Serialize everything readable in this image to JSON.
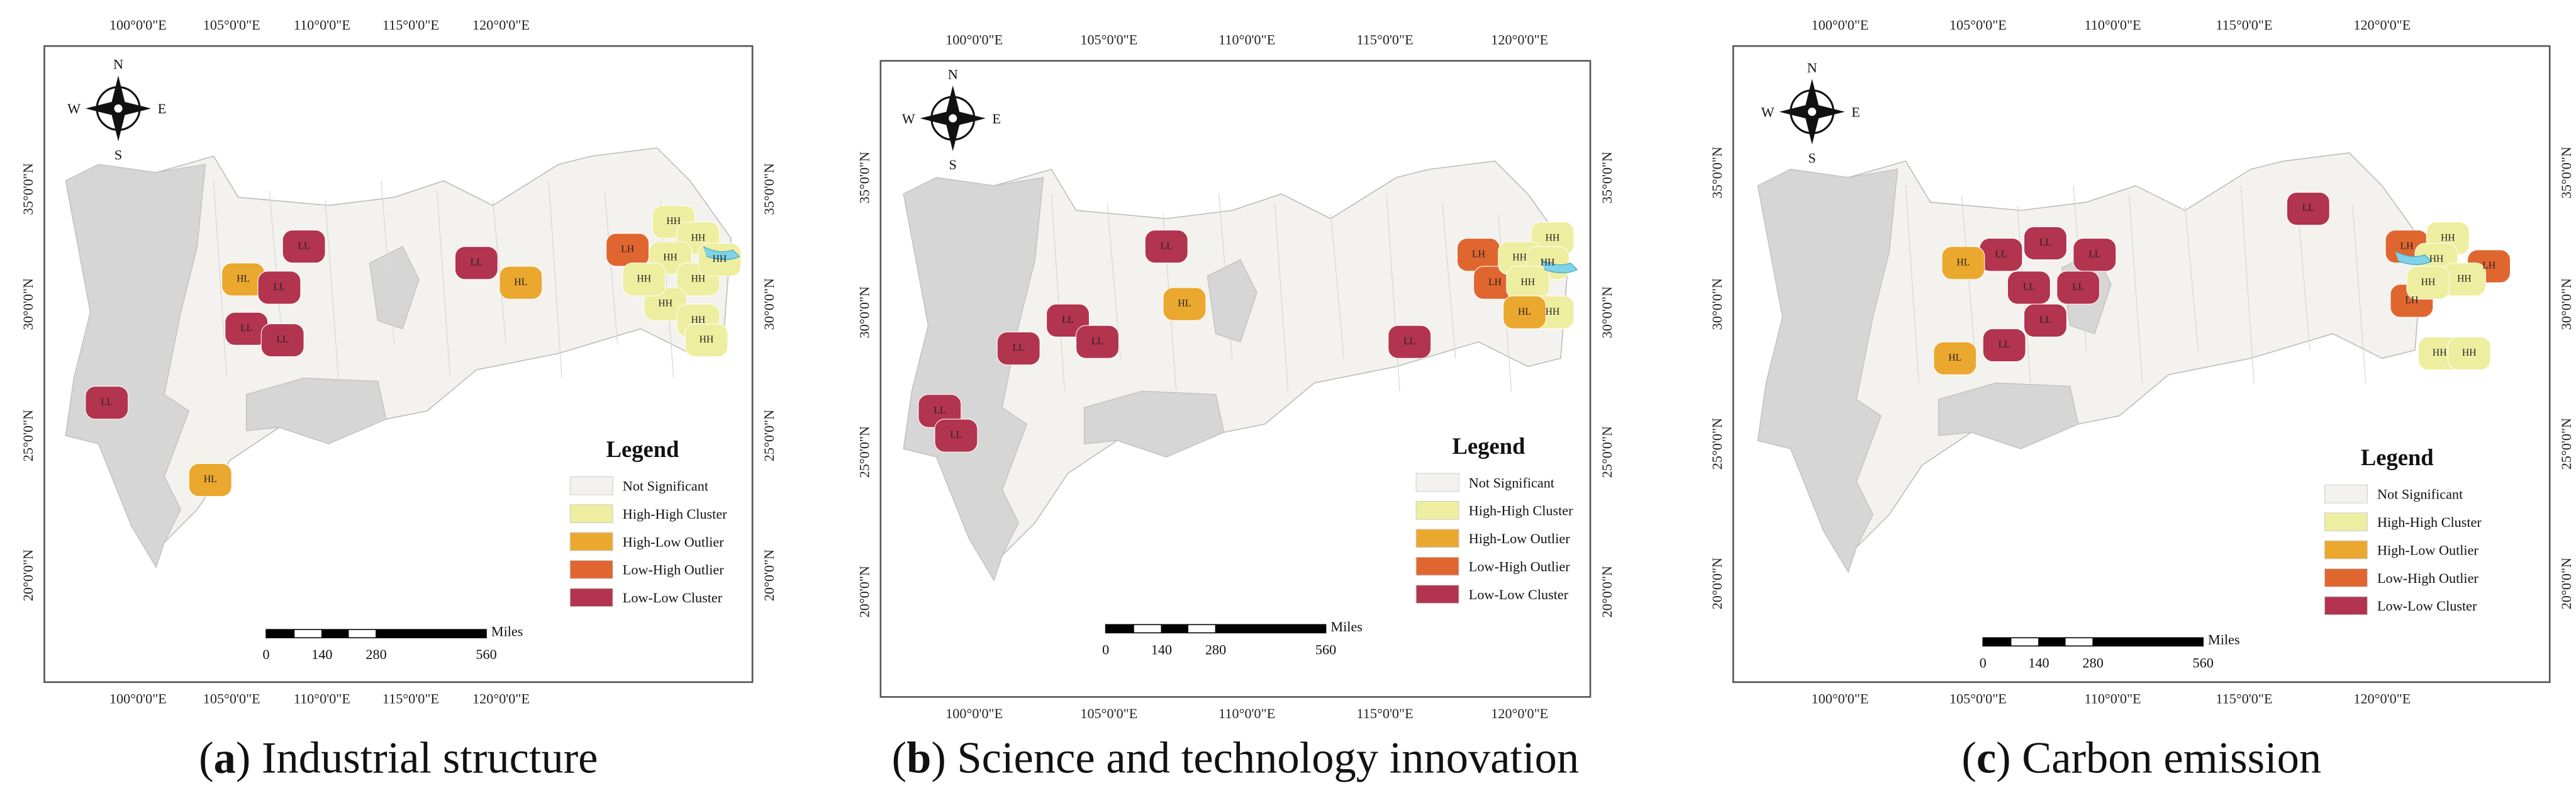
{
  "panels": [
    {
      "caption": [
        "(",
        "a",
        ") Industrial structure"
      ],
      "region_labels": [
        "HL",
        "LL",
        "LL",
        "LL",
        "LL",
        "HL",
        "LL",
        "LL",
        "HL",
        "LH",
        "HH",
        "HH",
        "HH",
        "HH",
        "HH",
        "HH",
        "HH",
        "HH",
        "HH"
      ]
    },
    {
      "caption": [
        "(",
        "b",
        ") Science and technology innovation"
      ],
      "region_labels": [
        "LL",
        "HL",
        "LL",
        "LL",
        "LL",
        "LL",
        "LL",
        "LL",
        "LH",
        "LH",
        "HH",
        "HH",
        "HH",
        "HH",
        "HH",
        "HL"
      ]
    },
    {
      "caption": [
        "(",
        "c",
        ") Carbon emission"
      ],
      "region_labels": [
        "LL",
        "LL",
        "LL",
        "LL",
        "LL",
        "LL",
        "LL",
        "HL",
        "HL",
        "LL",
        "LH",
        "LH",
        "LH",
        "HH",
        "HH",
        "HH",
        "HH",
        "HH",
        "HH"
      ]
    }
  ],
  "longitude_labels": [
    "100°0'0\"E",
    "105°0'0\"E",
    "110°0'0\"E",
    "115°0'0\"E",
    "120°0'0\"E"
  ],
  "latitude_labels": [
    "35°0'0\"N",
    "30°0'0\"N",
    "25°0'0\"N",
    "20°0'0\"N"
  ],
  "compass": {
    "north": "N",
    "south": "S",
    "east": "E",
    "west": "W"
  },
  "legend": {
    "title": "Legend",
    "items": [
      {
        "label": "Not Significant",
        "color": "#f3f2ee"
      },
      {
        "label": "High-High Cluster",
        "color": "#eeeea0"
      },
      {
        "label": "High-Low Outlier",
        "color": "#eba82e"
      },
      {
        "label": "Low-High Outlier",
        "color": "#e0662f"
      },
      {
        "label": "Low-Low Cluster",
        "color": "#b2344e"
      }
    ]
  },
  "scale_bar": {
    "unit": "Miles",
    "labels": [
      "0",
      "140",
      "280",
      "560"
    ]
  }
}
